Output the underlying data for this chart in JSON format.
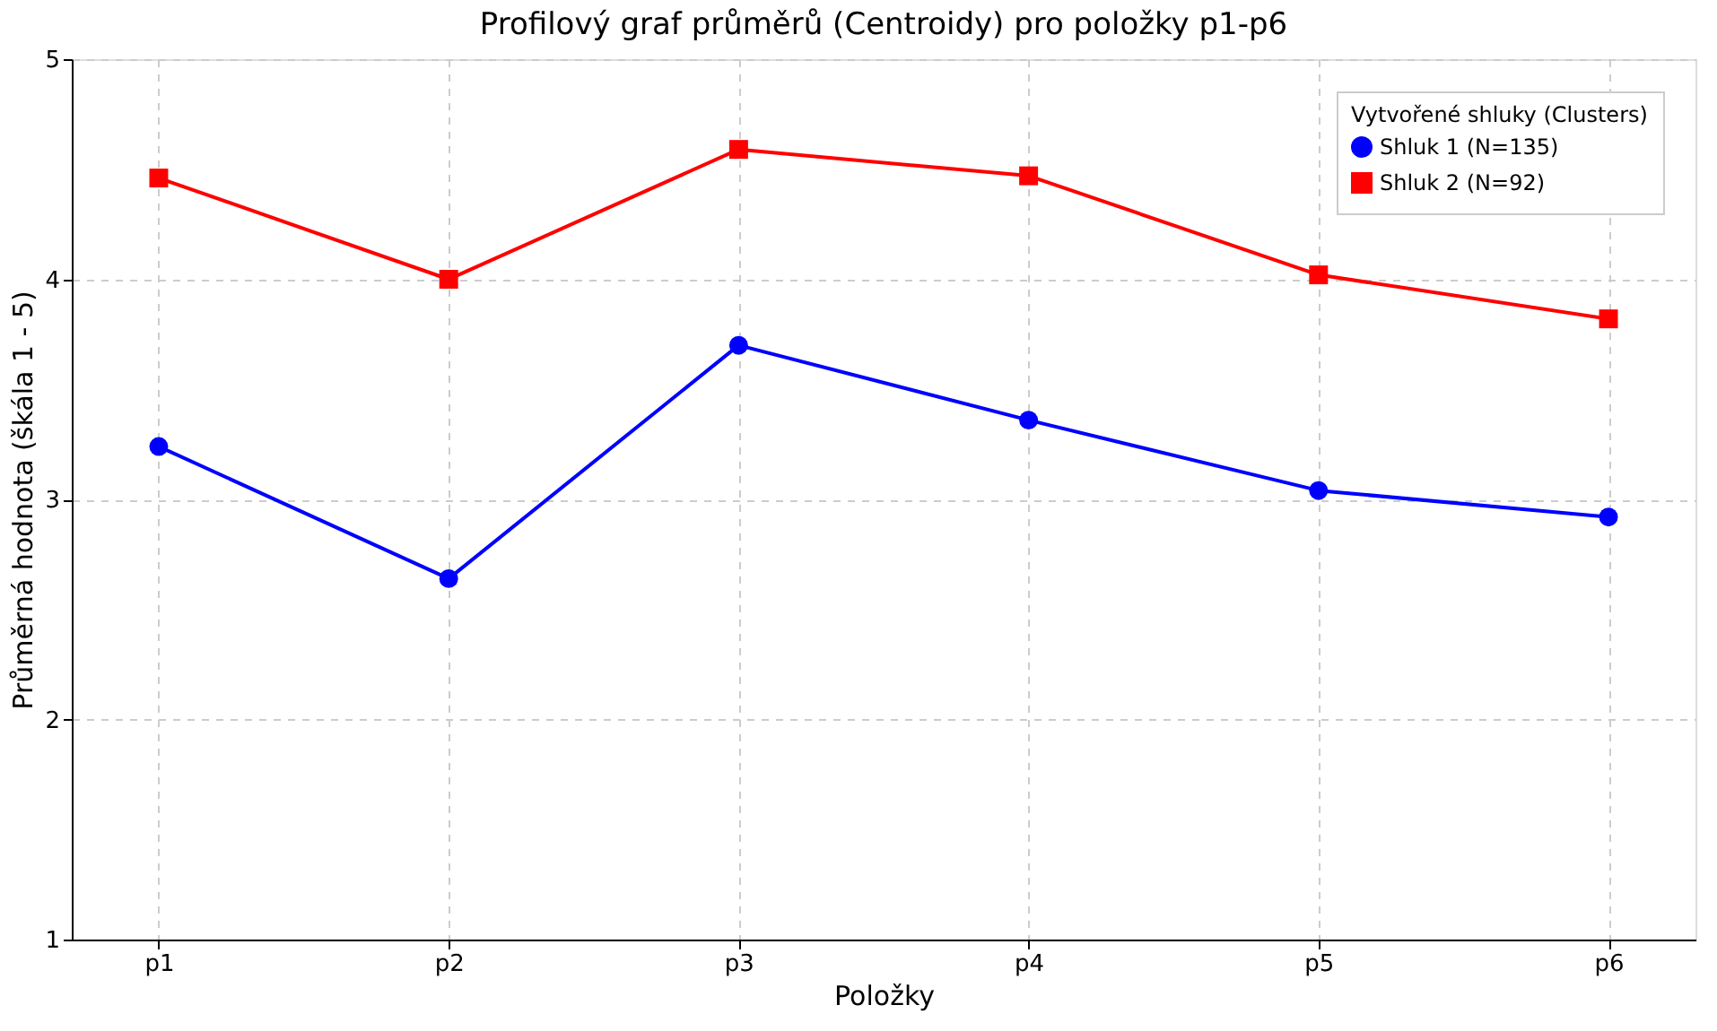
{
  "chart_data": {
    "type": "line",
    "title": "Profilový graf průměrů (Centroidy) pro položky p1-p6",
    "xlabel": "Položky",
    "ylabel": "Průměrná hodnota (škála 1 - 5)",
    "legend_title": "Vytvořené shluky (Clusters)",
    "categories": [
      "p1",
      "p2",
      "p3",
      "p4",
      "p5",
      "p6"
    ],
    "series": [
      {
        "name": "Shluk 1 (N=135)",
        "color": "#0000ff",
        "marker": "circle",
        "values": [
          3.24,
          2.64,
          3.7,
          3.36,
          3.04,
          2.92
        ]
      },
      {
        "name": "Shluk 2 (N=92)",
        "color": "#ff0000",
        "marker": "square",
        "values": [
          4.46,
          4.0,
          4.59,
          4.47,
          4.02,
          3.82
        ]
      }
    ],
    "ylim": [
      1,
      5
    ],
    "yticks": [
      1,
      2,
      3,
      4,
      5
    ],
    "grid": true,
    "legend": "top right",
    "line_style": "solid"
  }
}
